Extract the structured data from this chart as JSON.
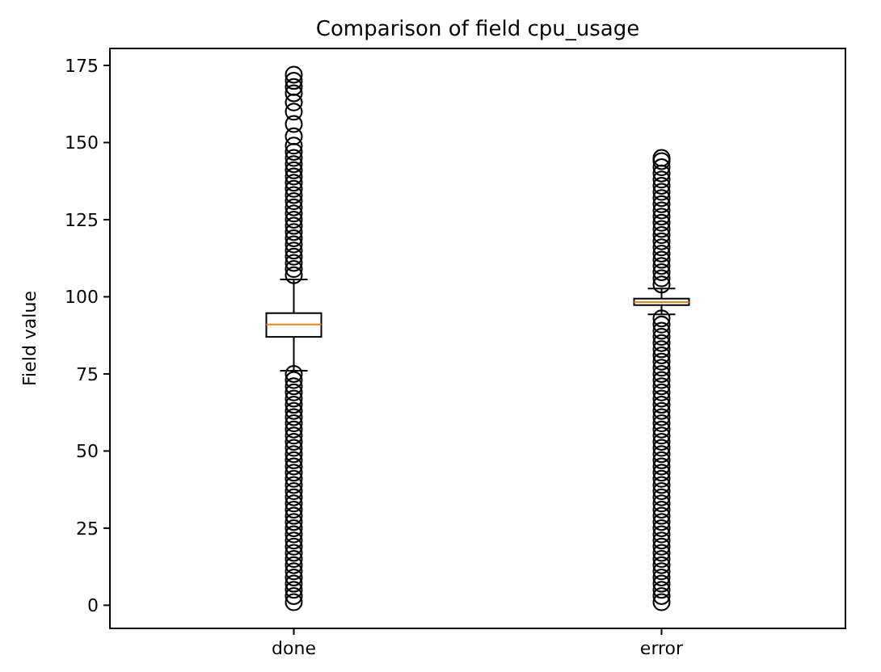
{
  "chart_data": {
    "type": "box",
    "title": "Comparison of field cpu_usage",
    "ylabel": "Field value",
    "categories": [
      "done",
      "error"
    ],
    "boxes": [
      {
        "low": 76,
        "q1": 87,
        "median": 91,
        "q3": 94.7,
        "high": 105.6,
        "outliers": [
          1,
          3,
          5,
          7,
          9,
          11,
          13,
          15,
          17,
          19,
          21,
          23,
          25,
          27,
          29,
          31,
          33,
          35,
          37,
          39,
          41,
          43,
          45,
          47,
          49,
          51,
          53,
          55,
          57,
          59,
          61,
          63,
          65,
          67,
          69,
          71,
          73,
          75,
          107,
          109,
          111,
          113,
          115,
          117,
          119,
          121,
          123,
          125,
          127,
          129,
          131,
          133,
          135,
          137,
          139,
          141,
          143,
          145,
          147,
          149,
          152,
          156,
          160,
          163,
          166,
          168,
          170,
          172
        ]
      },
      {
        "low": 94.3,
        "q1": 97.3,
        "median": 98.3,
        "q3": 99.4,
        "high": 102.7,
        "outliers": [
          1,
          3,
          5,
          7,
          9,
          11,
          13,
          15,
          17,
          19,
          21,
          23,
          25,
          27,
          29,
          31,
          33,
          35,
          37,
          39,
          41,
          43,
          45,
          47,
          49,
          51,
          53,
          55,
          57,
          59,
          61,
          63,
          65,
          67,
          69,
          71,
          73,
          75,
          77,
          79,
          81,
          83,
          85,
          87,
          89,
          91,
          93,
          104,
          106,
          108,
          110,
          112,
          114,
          116,
          118,
          120,
          122,
          124,
          126,
          128,
          130,
          132,
          134,
          136,
          138,
          140,
          142,
          144,
          145
        ]
      }
    ],
    "ylim": [
      -7.5,
      180.5
    ],
    "yticks": [
      0,
      25,
      50,
      75,
      100,
      125,
      150,
      175
    ],
    "grid": false
  }
}
